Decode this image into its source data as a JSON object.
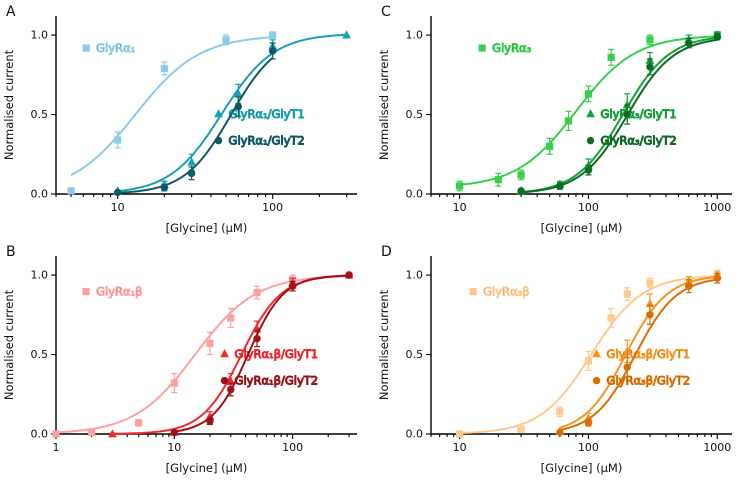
{
  "chart_data": [
    {
      "panel_label": "A",
      "type": "line",
      "xscale": "log",
      "xlabel": "[Glycine] (µM)",
      "ylabel": "Normalised current",
      "xlim": [
        4,
        350
      ],
      "ylim": [
        0,
        1.12
      ],
      "xticks": [
        10,
        100
      ],
      "yticks": [
        0,
        0.5,
        1
      ],
      "grid": false,
      "series": [
        {
          "name": "GlyRα₁",
          "color": "#8ecbe8",
          "marker": "square",
          "ec50": 13,
          "hill": 2.1,
          "top": 1.0,
          "x": [
            5,
            10,
            20,
            50,
            100
          ],
          "y": [
            0.02,
            0.34,
            0.79,
            0.97,
            1.0
          ],
          "e": [
            0.01,
            0.05,
            0.04,
            0.03,
            0.02
          ],
          "label_pos": [
            0.1,
            0.18
          ]
        },
        {
          "name": "GlyRα₁/GlyT1",
          "color": "#18a0b2",
          "marker": "triangle",
          "ec50": 47,
          "hill": 2.6,
          "top": 1.01,
          "x": [
            10,
            20,
            30,
            60,
            100,
            300
          ],
          "y": [
            0.02,
            0.06,
            0.2,
            0.63,
            0.93,
            1.0
          ],
          "e": [
            0.01,
            0.02,
            0.05,
            0.06,
            0.04,
            0.01
          ],
          "label_pos": [
            0.54,
            0.55
          ]
        },
        {
          "name": "GlyRα₁/GlyT2",
          "color": "#0d5966",
          "marker": "circle",
          "ec50": 54,
          "hill": 2.9,
          "top": 1.0,
          "x": [
            10,
            20,
            30,
            60,
            100
          ],
          "y": [
            0.01,
            0.04,
            0.13,
            0.55,
            0.9
          ],
          "e": [
            0.01,
            0.02,
            0.04,
            0.06,
            0.05
          ],
          "label_pos": [
            0.54,
            0.7
          ]
        }
      ]
    },
    {
      "panel_label": "B",
      "type": "line",
      "xscale": "log",
      "xlabel": "[Glycine] (µM)",
      "ylabel": "Normalised current",
      "xlim": [
        1,
        350
      ],
      "ylim": [
        0,
        1.12
      ],
      "xticks": [
        1,
        10,
        100
      ],
      "yticks": [
        0,
        0.5,
        1
      ],
      "grid": false,
      "series": [
        {
          "name": "GlyRα₁β",
          "color": "#ffa0a0",
          "marker": "square",
          "ec50": 15,
          "hill": 1.7,
          "top": 1.0,
          "x": [
            1,
            2,
            5,
            10,
            20,
            30,
            50,
            100,
            300
          ],
          "y": [
            0,
            0.01,
            0.07,
            0.32,
            0.57,
            0.73,
            0.89,
            0.97,
            1.0
          ],
          "e": [
            0.005,
            0.005,
            0.02,
            0.06,
            0.07,
            0.06,
            0.04,
            0.03,
            0.01
          ],
          "label_pos": [
            0.1,
            0.2
          ]
        },
        {
          "name": "GlyRα₁β/GlyT1",
          "color": "#f22a2e",
          "marker": "triangle",
          "ec50": 37,
          "hill": 2.6,
          "top": 1.0,
          "x": [
            3,
            10,
            20,
            30,
            50,
            100,
            300
          ],
          "y": [
            0,
            0.01,
            0.11,
            0.33,
            0.66,
            0.95,
            1.0
          ],
          "e": [
            0.004,
            0.01,
            0.03,
            0.05,
            0.05,
            0.03,
            0.01
          ],
          "label_pos": [
            0.56,
            0.55
          ]
        },
        {
          "name": "GlyRα₁β/GlyT2",
          "color": "#9e1116",
          "marker": "circle",
          "ec50": 42,
          "hill": 2.9,
          "top": 1.0,
          "x": [
            10,
            20,
            30,
            50,
            100,
            300
          ],
          "y": [
            0.01,
            0.08,
            0.28,
            0.6,
            0.93,
            1.0
          ],
          "e": [
            0.01,
            0.02,
            0.04,
            0.05,
            0.03,
            0.01
          ],
          "label_pos": [
            0.56,
            0.7
          ]
        }
      ]
    },
    {
      "panel_label": "C",
      "type": "line",
      "xscale": "log",
      "xlabel": "[Glycine] (µM)",
      "ylabel": "Normalised current",
      "xlim": [
        6,
        1300
      ],
      "ylim": [
        0,
        1.12
      ],
      "xticks": [
        10,
        100,
        1000
      ],
      "yticks": [
        0,
        0.5,
        1
      ],
      "grid": false,
      "series": [
        {
          "name": "GlyRα₃",
          "color": "#35cf4b",
          "marker": "square",
          "ec50": 80,
          "hill": 1.9,
          "top": 1.0,
          "bottom": 0.04,
          "x": [
            10,
            20,
            30,
            50,
            70,
            100,
            150,
            300,
            1000
          ],
          "y": [
            0.05,
            0.09,
            0.12,
            0.3,
            0.46,
            0.63,
            0.86,
            0.97,
            1.0
          ],
          "e": [
            0.03,
            0.04,
            0.03,
            0.05,
            0.06,
            0.05,
            0.05,
            0.03,
            0.02
          ],
          "label_pos": [
            0.17,
            0.18
          ]
        },
        {
          "name": "GlyRα₃/GlyT1",
          "color": "#12a437",
          "marker": "triangle",
          "ec50": 185,
          "hill": 2.4,
          "top": 1.0,
          "x": [
            30,
            60,
            100,
            200,
            300,
            600,
            1000
          ],
          "y": [
            0.02,
            0.06,
            0.18,
            0.56,
            0.84,
            0.97,
            1.0
          ],
          "e": [
            0.01,
            0.02,
            0.04,
            0.07,
            0.05,
            0.03,
            0.02
          ],
          "label_pos": [
            0.53,
            0.55
          ]
        },
        {
          "name": "GlyRα₃/GlyT2",
          "color": "#0d6b26",
          "marker": "circle",
          "ec50": 200,
          "hill": 2.4,
          "top": 0.99,
          "x": [
            30,
            60,
            100,
            200,
            300,
            600,
            1000
          ],
          "y": [
            0.02,
            0.05,
            0.15,
            0.5,
            0.8,
            0.95,
            0.99
          ],
          "e": [
            0.01,
            0.02,
            0.03,
            0.06,
            0.05,
            0.03,
            0.02
          ],
          "label_pos": [
            0.53,
            0.7
          ]
        }
      ]
    },
    {
      "panel_label": "D",
      "type": "line",
      "xscale": "log",
      "xlabel": "[Glycine] (µM)",
      "ylabel": "Normalised current",
      "xlim": [
        6,
        1300
      ],
      "ylim": [
        0,
        1.12
      ],
      "xticks": [
        10,
        100,
        1000
      ],
      "yticks": [
        0,
        0.5,
        1
      ],
      "grid": false,
      "series": [
        {
          "name": "GlyRα₃β",
          "color": "#ffc88d",
          "marker": "square",
          "ec50": 105,
          "hill": 2.2,
          "top": 1.0,
          "x": [
            10,
            30,
            60,
            100,
            150,
            200,
            300,
            1000
          ],
          "y": [
            0,
            0.03,
            0.14,
            0.46,
            0.73,
            0.88,
            0.95,
            0.99
          ],
          "e": [
            0.005,
            0.01,
            0.03,
            0.06,
            0.06,
            0.04,
            0.03,
            0.04
          ],
          "label_pos": [
            0.14,
            0.2
          ]
        },
        {
          "name": "GlyRα₃β/GlyT1",
          "color": "#f7941e",
          "marker": "triangle",
          "ec50": 195,
          "hill": 2.7,
          "top": 1.0,
          "x": [
            60,
            100,
            200,
            300,
            600,
            1000
          ],
          "y": [
            0.02,
            0.1,
            0.52,
            0.82,
            0.96,
            1.0
          ],
          "e": [
            0.01,
            0.03,
            0.07,
            0.06,
            0.03,
            0.02
          ],
          "label_pos": [
            0.55,
            0.55
          ]
        },
        {
          "name": "GlyRα₃β/GlyT2",
          "color": "#d96f00",
          "marker": "circle",
          "ec50": 230,
          "hill": 2.7,
          "top": 0.99,
          "x": [
            60,
            100,
            200,
            300,
            600,
            1000
          ],
          "y": [
            0.01,
            0.07,
            0.42,
            0.75,
            0.93,
            0.98
          ],
          "e": [
            0.01,
            0.02,
            0.06,
            0.06,
            0.04,
            0.03
          ],
          "label_pos": [
            0.55,
            0.7
          ]
        }
      ]
    }
  ]
}
